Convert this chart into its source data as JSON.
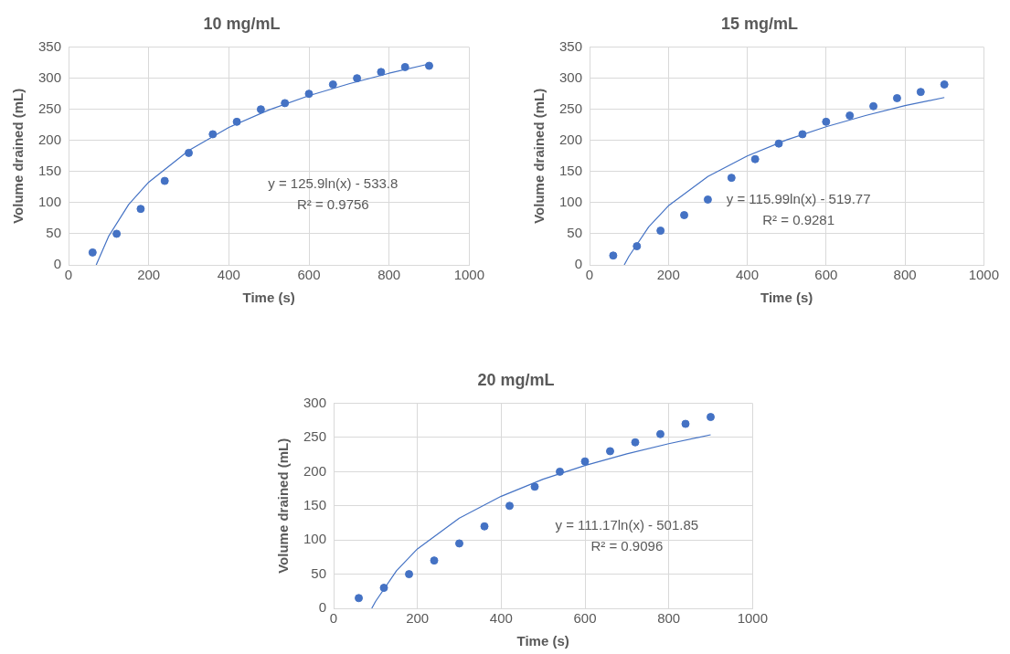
{
  "chart_data": [
    {
      "type": "scatter",
      "title": "10 mg/mL",
      "xlabel": "Time (s)",
      "ylabel": "Volume drained (mL)",
      "x": [
        60,
        120,
        180,
        240,
        300,
        360,
        420,
        480,
        540,
        600,
        660,
        720,
        780,
        840,
        900
      ],
      "series": [
        {
          "color": "#4472c4",
          "values": [
            20,
            50,
            90,
            135,
            180,
            210,
            230,
            250,
            260,
            275,
            290,
            300,
            310,
            318,
            320
          ]
        },
        {
          "type": "line",
          "color": "#4472c4",
          "marker": "none",
          "x": [
            69,
            100,
            150,
            200,
            300,
            400,
            500,
            600,
            700,
            800,
            900
          ],
          "values": [
            0,
            46,
            97,
            133,
            184,
            221,
            249,
            272,
            291,
            308,
            323
          ]
        }
      ],
      "annotations": [
        "y = 125.9ln(x) - 533.8",
        "R² = 0.9756"
      ],
      "xlim": [
        0,
        1000
      ],
      "xticks": [
        0,
        200,
        400,
        600,
        800,
        1000
      ],
      "ylim": [
        0,
        350
      ],
      "yticks": [
        0,
        50,
        100,
        150,
        200,
        250,
        300,
        350
      ],
      "grid": true,
      "legend": false,
      "marker": "circle"
    },
    {
      "type": "scatter",
      "title": "15 mg/mL",
      "xlabel": "Time (s)",
      "ylabel": "Volume drained (mL)",
      "x": [
        60,
        120,
        180,
        240,
        300,
        360,
        420,
        480,
        540,
        600,
        660,
        720,
        780,
        840,
        900
      ],
      "series": [
        {
          "color": "#4472c4",
          "values": [
            15,
            30,
            55,
            80,
            105,
            140,
            170,
            195,
            210,
            230,
            240,
            255,
            268,
            278,
            290
          ]
        },
        {
          "type": "line",
          "color": "#4472c4",
          "marker": "none",
          "x": [
            88,
            100,
            150,
            200,
            300,
            400,
            500,
            600,
            700,
            800,
            900
          ],
          "values": [
            0,
            14,
            61,
            95,
            142,
            175,
            201,
            222,
            240,
            256,
            269
          ]
        }
      ],
      "annotations": [
        "y = 115.99ln(x) - 519.77",
        "R² = 0.9281"
      ],
      "xlim": [
        0,
        1000
      ],
      "xticks": [
        0,
        200,
        400,
        600,
        800,
        1000
      ],
      "ylim": [
        0,
        350
      ],
      "yticks": [
        0,
        50,
        100,
        150,
        200,
        250,
        300,
        350
      ],
      "grid": true,
      "legend": false,
      "marker": "circle"
    },
    {
      "type": "scatter",
      "title": "20 mg/mL",
      "xlabel": "Time (s)",
      "ylabel": "Volume drained (mL)",
      "x": [
        60,
        120,
        180,
        240,
        300,
        360,
        420,
        480,
        540,
        600,
        660,
        720,
        780,
        840,
        900
      ],
      "series": [
        {
          "color": "#4472c4",
          "values": [
            15,
            30,
            50,
            70,
            95,
            120,
            150,
            178,
            200,
            215,
            230,
            243,
            255,
            270,
            280
          ]
        },
        {
          "type": "line",
          "color": "#4472c4",
          "marker": "none",
          "x": [
            91,
            100,
            150,
            200,
            300,
            400,
            500,
            600,
            700,
            800,
            900
          ],
          "values": [
            0,
            10,
            55,
            87,
            132,
            164,
            189,
            209,
            226,
            241,
            254
          ]
        }
      ],
      "annotations": [
        "y = 111.17ln(x) - 501.85",
        "R² = 0.9096"
      ],
      "xlim": [
        0,
        1000
      ],
      "xticks": [
        0,
        200,
        400,
        600,
        800,
        1000
      ],
      "ylim": [
        0,
        300
      ],
      "yticks": [
        0,
        50,
        100,
        150,
        200,
        250,
        300
      ],
      "grid": true,
      "legend": false,
      "marker": "circle"
    }
  ]
}
